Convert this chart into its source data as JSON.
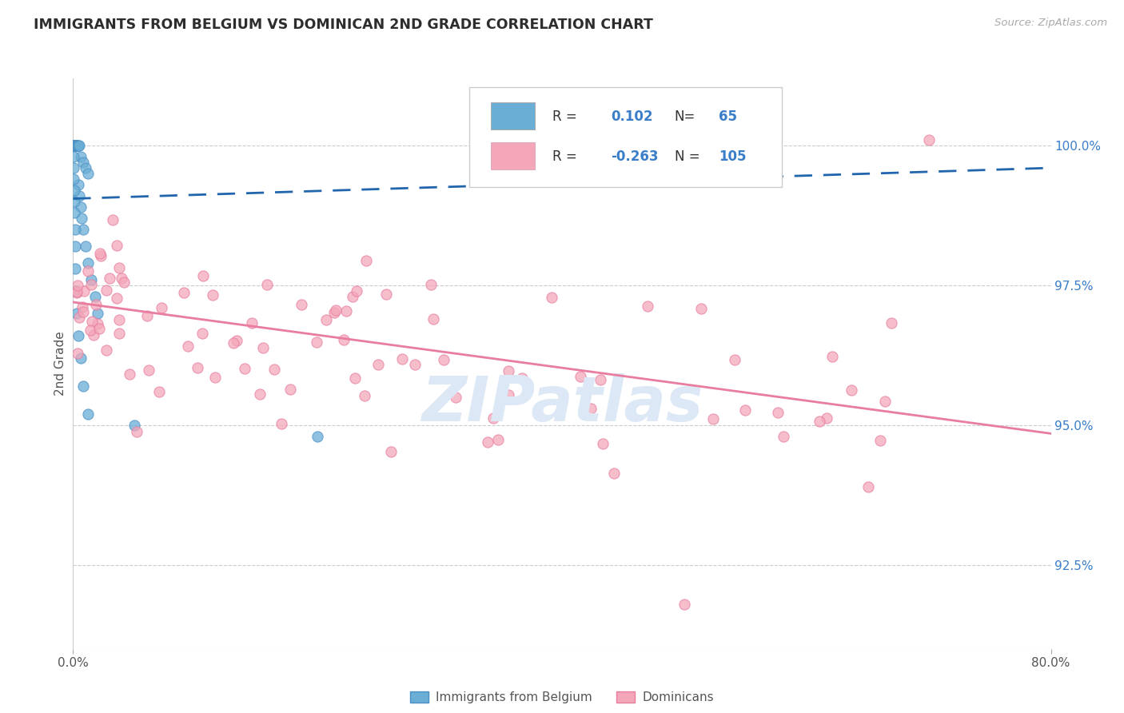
{
  "title": "IMMIGRANTS FROM BELGIUM VS DOMINICAN 2ND GRADE CORRELATION CHART",
  "source_text": "Source: ZipAtlas.com",
  "ylabel": "2nd Grade",
  "R_blue": 0.102,
  "N_blue": 65,
  "R_pink": -0.263,
  "N_pink": 105,
  "blue_color": "#6aaed6",
  "blue_edge_color": "#4a90c4",
  "pink_color": "#f4a7b9",
  "pink_edge_color": "#e87da0",
  "blue_line_color": "#2166ac",
  "pink_line_color": "#e87da0",
  "legend_R_color": "#3a7dc9",
  "background_color": "#ffffff",
  "title_color": "#2d2d2d",
  "watermark_color": "#dce8f5",
  "xlim": [
    0.0,
    80.0
  ],
  "ylim": [
    91.0,
    101.2
  ],
  "y_ticks_right_vals": [
    92.5,
    95.0,
    97.5,
    100.0
  ],
  "legend_label_blue": "Immigrants from Belgium",
  "legend_label_pink": "Dominicans",
  "blue_trend_x0": 0.0,
  "blue_trend_y0": 99.05,
  "blue_trend_x1": 80.0,
  "blue_trend_y1": 99.6,
  "pink_trend_x0": 0.0,
  "pink_trend_y0": 97.2,
  "pink_trend_x1": 80.0,
  "pink_trend_y1": 94.85
}
